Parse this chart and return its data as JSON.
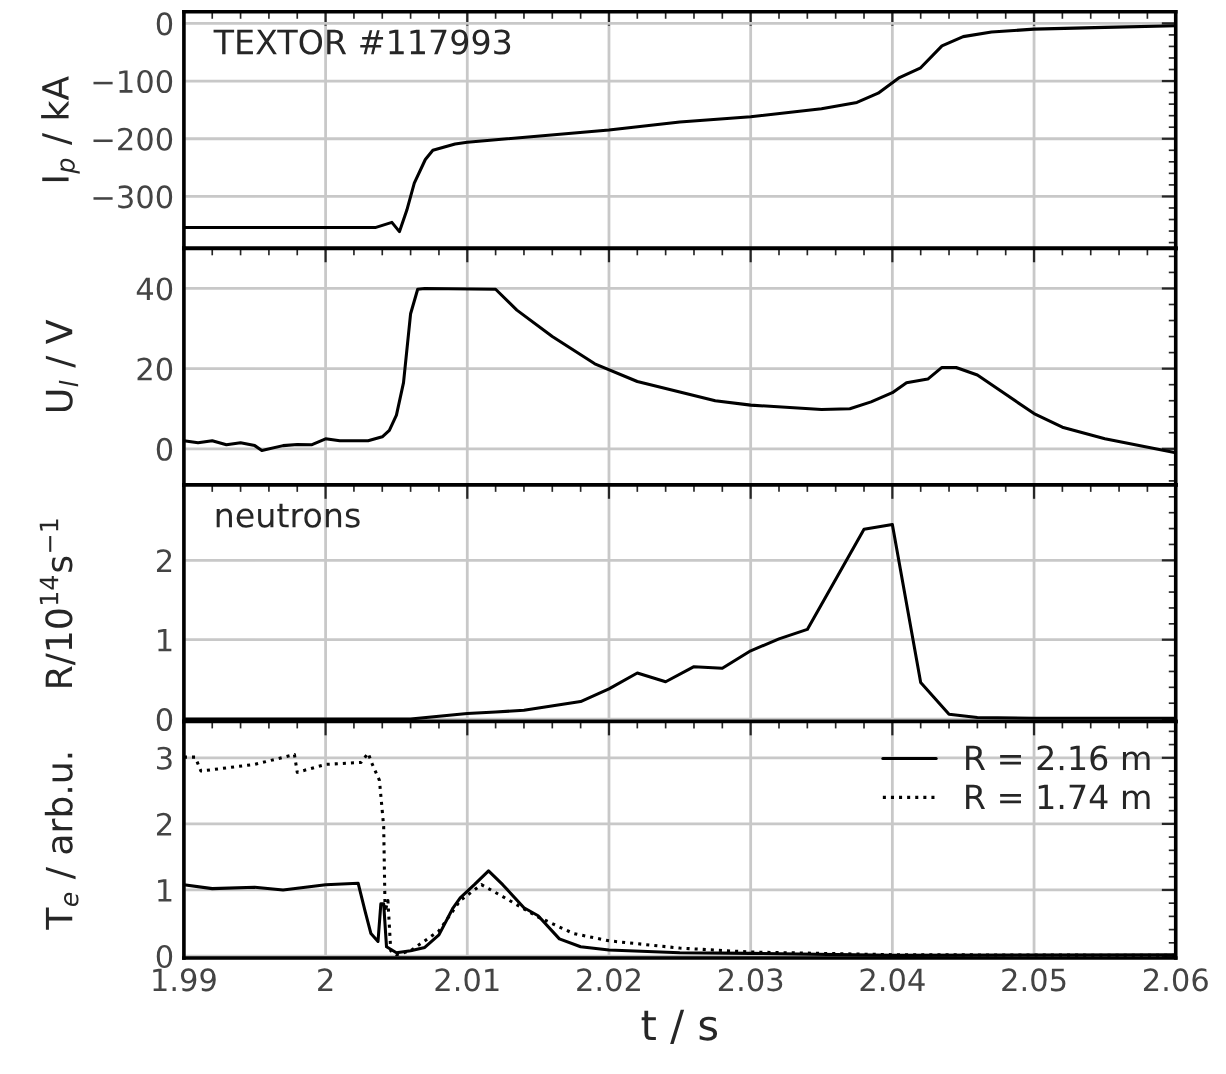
{
  "chart_data": [
    {
      "type": "line",
      "ylabel": "I$_{p}$ / kA",
      "annotations": [
        "TEXTOR #117993"
      ],
      "xlim": [
        1.99,
        2.06
      ],
      "xticks": [
        1.99,
        2,
        2.01,
        2.02,
        2.03,
        2.04,
        2.05,
        2.06
      ],
      "ylim": [
        -390,
        20
      ],
      "yticks": [
        {
          "value": -300,
          "label": "−300"
        },
        {
          "value": -200,
          "label": "−200"
        },
        {
          "value": -100,
          "label": "−100"
        },
        0
      ],
      "tick_labels": "y",
      "grid": true,
      "series": [
        {
          "color": "#000000",
          "line_style": "solid",
          "x": [
            1.99,
            2.0035,
            2.00468,
            2.00521,
            2.00573,
            2.00626,
            2.00704,
            2.00757,
            2.00914,
            2.01,
            2.02,
            2.025,
            2.03,
            2.035,
            2.0375,
            2.039,
            2.0405,
            2.042,
            2.0435,
            2.045,
            2.047,
            2.05,
            2.055,
            2.06
          ],
          "values": [
            -354,
            -354,
            -345,
            -361,
            -324,
            -277,
            -236,
            -220,
            -209,
            -206,
            -185,
            -171,
            -162,
            -148,
            -137,
            -121,
            -94,
            -77,
            -39,
            -23,
            -15,
            -10,
            -7,
            -4
          ]
        }
      ]
    },
    {
      "type": "line",
      "ylabel": "U$_{l}$ / V",
      "xlim": [
        1.99,
        2.06
      ],
      "xticks": [
        1.99,
        2,
        2.01,
        2.02,
        2.03,
        2.04,
        2.05,
        2.06
      ],
      "ylim": [
        -9,
        50
      ],
      "yticks": [
        0,
        20,
        40
      ],
      "tick_labels": "y",
      "grid": true,
      "series": [
        {
          "color": "#000000",
          "line_style": "solid",
          "x": [
            1.99,
            1.991,
            1.992,
            1.993,
            1.994,
            1.995,
            1.9955,
            1.997,
            1.998,
            1.999,
            2.0,
            2.001,
            2.003,
            2.004,
            2.0045,
            2.005,
            2.0055,
            2.006,
            2.0065,
            2.007,
            2.012,
            2.0135,
            2.016,
            2.019,
            2.022,
            2.025,
            2.0275,
            2.03,
            2.035,
            2.037,
            2.0385,
            2.04,
            2.041,
            2.0425,
            2.0435,
            2.0445,
            2.046,
            2.048,
            2.05,
            2.052,
            2.055,
            2.06
          ],
          "values": [
            2,
            1.5,
            2,
            1,
            1.5,
            0.8,
            -0.4,
            0.8,
            1.1,
            1,
            2.5,
            2,
            2,
            3,
            4.6,
            8.4,
            16.5,
            33.7,
            39.8,
            40,
            39.8,
            34.6,
            28,
            21.2,
            16.8,
            14.2,
            12,
            10.9,
            9.8,
            10,
            11.7,
            14,
            16.5,
            17.4,
            20.3,
            20.3,
            18.4,
            13.6,
            8.8,
            5.4,
            2.5,
            -1
          ]
        }
      ]
    },
    {
      "type": "line",
      "ylabel": "R/10$^{14}$s$^{−1}$",
      "annotations": [
        "neutrons"
      ],
      "xlim": [
        1.99,
        2.06
      ],
      "xticks": [
        1.99,
        2,
        2.01,
        2.02,
        2.03,
        2.04,
        2.05,
        2.06
      ],
      "ylim": [
        -0.03,
        2.95
      ],
      "yticks": [
        0,
        1,
        2
      ],
      "tick_labels": "y",
      "grid": true,
      "series": [
        {
          "color": "#000000",
          "line_style": "solid",
          "x": [
            1.99,
            2.006,
            2.01,
            2.012,
            2.014,
            2.018,
            2.02,
            2.022,
            2.024,
            2.026,
            2.028,
            2.03,
            2.032,
            2.034,
            2.038,
            2.04,
            2.042,
            2.044,
            2.046,
            2.05,
            2.06
          ],
          "values": [
            0,
            0,
            0.07,
            0.09,
            0.11,
            0.22,
            0.38,
            0.58,
            0.47,
            0.66,
            0.64,
            0.86,
            1.01,
            1.13,
            2.39,
            2.45,
            0.46,
            0.06,
            0.02,
            0.01,
            0.01
          ]
        }
      ]
    },
    {
      "type": "line",
      "ylabel": "T$_{e}$ / arb.u.",
      "xlabel": "t / s",
      "xlim": [
        1.99,
        2.06
      ],
      "xticks": [
        1.99,
        2,
        2.01,
        2.02,
        2.03,
        2.04,
        2.05,
        2.06
      ],
      "ylim": [
        -0.03,
        3.55
      ],
      "yticks": [
        0,
        1,
        2,
        3
      ],
      "grid": true,
      "legend": "top right",
      "series": [
        {
          "name": "R = 2.16 m",
          "color": "#000000",
          "line_style": "solid",
          "x": [
            1.99,
            1.992,
            1.995,
            1.997,
            2.0,
            2.0023,
            2.0028,
            2.0032,
            2.0037,
            2.0039,
            2.0041,
            2.0043,
            2.005,
            2.006,
            2.007,
            2.008,
            2.009,
            2.0095,
            2.0105,
            2.0115,
            2.0125,
            2.014,
            2.015,
            2.0165,
            2.018,
            2.02,
            2.025,
            2.03,
            2.04,
            2.06
          ],
          "values": [
            1.08,
            1.02,
            1.04,
            1.0,
            1.08,
            1.1,
            0.67,
            0.34,
            0.22,
            0.79,
            0.79,
            0.14,
            0.05,
            0.08,
            0.13,
            0.32,
            0.73,
            0.88,
            1.08,
            1.29,
            1.08,
            0.73,
            0.61,
            0.26,
            0.14,
            0.09,
            0.05,
            0.04,
            0.01,
            0.02
          ]
        },
        {
          "name": "R = 1.74 m",
          "color": "#000000",
          "line_style": "dotted",
          "x": [
            1.99,
            1.9908,
            1.9912,
            1.995,
            1.9978,
            1.998,
            2.0,
            2.0025,
            2.003,
            2.0033,
            2.0038,
            2.0041,
            2.0042,
            2.0044,
            2.0046,
            2.005,
            2.006,
            2.008,
            2.0095,
            2.011,
            2.0125,
            2.015,
            2.0175,
            2.02,
            2.025,
            2.03,
            2.04,
            2.06
          ],
          "values": [
            3.01,
            3.01,
            2.8,
            2.9,
            3.05,
            2.78,
            2.9,
            2.93,
            3.07,
            2.9,
            2.66,
            1.96,
            0.67,
            0.84,
            0.08,
            0.02,
            0.08,
            0.38,
            0.84,
            1.08,
            0.9,
            0.59,
            0.34,
            0.23,
            0.12,
            0.06,
            0.02,
            0.01
          ]
        }
      ]
    }
  ]
}
